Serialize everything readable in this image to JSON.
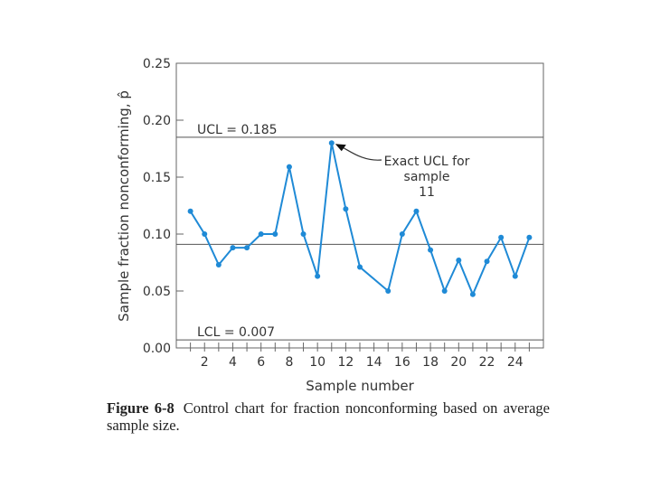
{
  "chart_data": {
    "type": "line",
    "xlabel": "Sample number",
    "ylabel": "Sample fraction nonconforming, p̂",
    "xlim": [
      0,
      26
    ],
    "ylim": [
      0,
      0.25
    ],
    "x_ticks": [
      "2",
      "4",
      "6",
      "8",
      "10",
      "12",
      "14",
      "16",
      "18",
      "20",
      "22",
      "24"
    ],
    "y_ticks": [
      "0.00",
      "0.05",
      "0.10",
      "0.15",
      "0.20",
      "0.25"
    ],
    "x": [
      1,
      2,
      3,
      4,
      5,
      6,
      7,
      8,
      9,
      10,
      11,
      12,
      13,
      15,
      16,
      17,
      18,
      19,
      20,
      21,
      22,
      23,
      24,
      25
    ],
    "values": [
      0.12,
      0.1,
      0.073,
      0.088,
      0.088,
      0.1,
      0.1,
      0.159,
      0.1,
      0.063,
      0.18,
      0.122,
      0.071,
      0.05,
      0.1,
      0.12,
      0.086,
      0.05,
      0.077,
      0.047,
      0.076,
      0.097,
      0.063,
      0.097
    ],
    "center_line": 0.091,
    "ucl": {
      "value": 0.185,
      "label": "UCL = 0.185"
    },
    "lcl": {
      "value": 0.007,
      "label": "LCL = 0.007"
    },
    "annotation": {
      "lines": [
        "Exact UCL for",
        "sample",
        "11"
      ],
      "target_x": 11,
      "target_y": 0.18
    },
    "color": "#1f8ad6"
  },
  "caption": {
    "figure_label": "Figure 6-8",
    "text": "Control chart for fraction nonconforming based on average sample size."
  }
}
